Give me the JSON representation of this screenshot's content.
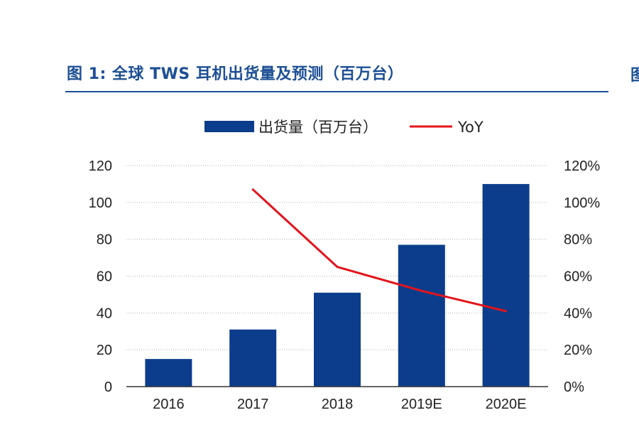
{
  "page": {
    "title": "图 1: 全球 TWS 耳机出货量及预测（百万台）"
  },
  "colors": {
    "title": "#1c4f95",
    "bar": "#0b3d8c",
    "line": "#e3141b",
    "grid": "#b5b5b5",
    "axis_text": "#222222"
  },
  "chart_data": {
    "type": "bar",
    "title": "图 1: 全球 TWS 耳机出货量及预测（百万台）",
    "categories": [
      "2016",
      "2017",
      "2018",
      "2019E",
      "2020E"
    ],
    "series": [
      {
        "name": "出货量（百万台）",
        "type": "bar",
        "axis": "left",
        "values": [
          15,
          31,
          51,
          77,
          110
        ]
      },
      {
        "name": "YoY",
        "type": "line",
        "axis": "right",
        "values": [
          null,
          107,
          65,
          52,
          41
        ]
      }
    ],
    "y_left": {
      "min": 0,
      "max": 120,
      "ticks": [
        "0",
        "20",
        "40",
        "60",
        "80",
        "100",
        "120"
      ]
    },
    "y_right": {
      "min": 0,
      "max": 120,
      "ticks": [
        "0%",
        "20%",
        "40%",
        "60%",
        "80%",
        "100%",
        "120%"
      ]
    },
    "grid": true,
    "legend": "top-center"
  }
}
